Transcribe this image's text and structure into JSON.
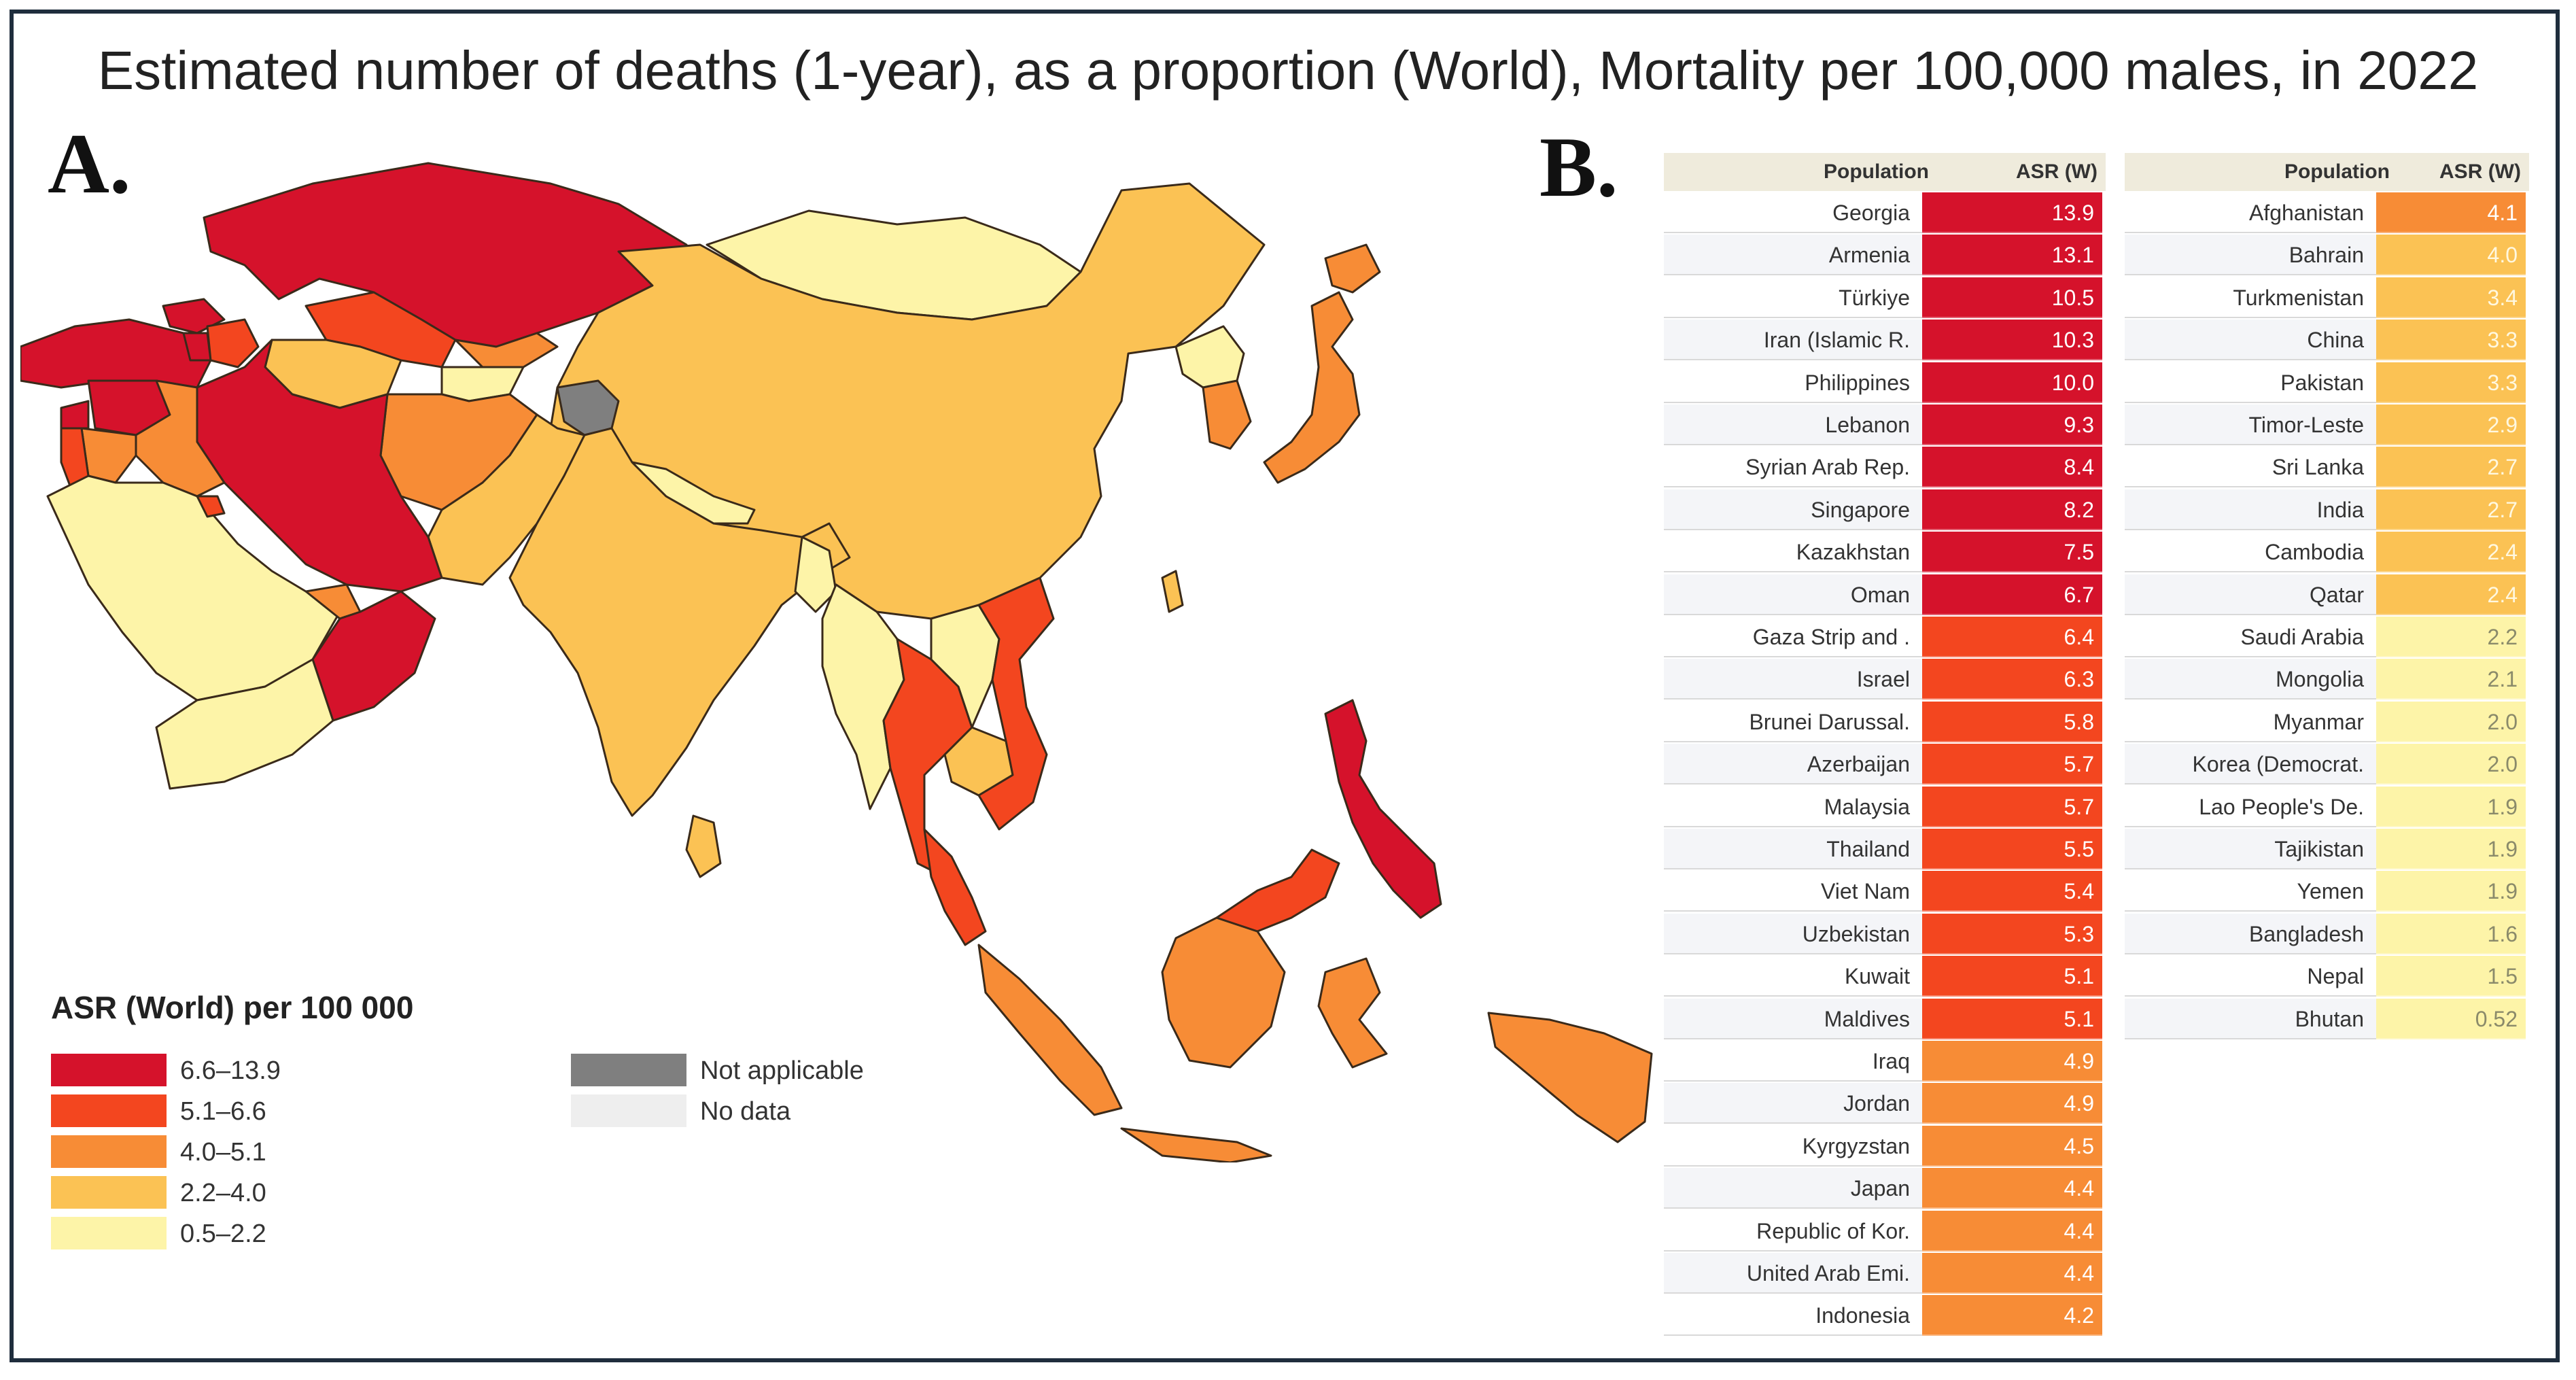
{
  "title": "Estimated number of deaths (1-year), as a proportion (World), Mortality per 100,000 males, in 2022",
  "panel_a": "A.",
  "panel_b": "B.",
  "legend": {
    "title": "ASR (World) per 100 000",
    "classes": [
      {
        "label": "6.6–13.9",
        "color": "#d5122b"
      },
      {
        "label": "5.1–6.6",
        "color": "#f3461f"
      },
      {
        "label": "4.0–5.1",
        "color": "#f78c36"
      },
      {
        "label": "2.2–4.0",
        "color": "#fbc254"
      },
      {
        "label": "0.5–2.2",
        "color": "#fdf4a8"
      }
    ],
    "extra": [
      {
        "label": "Not applicable",
        "color": "#7f7f7f"
      },
      {
        "label": "No data",
        "color": "#eeeeee"
      }
    ]
  },
  "map_colors": {
    "ocean": "#ffffff",
    "border": "#3a2a1a"
  },
  "table_left": {
    "header": {
      "population": "Population",
      "asr": "ASR (W)"
    },
    "rows": [
      {
        "name": "Georgia",
        "value": "13.9",
        "color": "#d5122b"
      },
      {
        "name": "Armenia",
        "value": "13.1",
        "color": "#d5122b"
      },
      {
        "name": "Türkiye",
        "value": "10.5",
        "color": "#d5122b"
      },
      {
        "name": "Iran (Islamic R.",
        "value": "10.3",
        "color": "#d5122b"
      },
      {
        "name": "Philippines",
        "value": "10.0",
        "color": "#d5122b"
      },
      {
        "name": "Lebanon",
        "value": "9.3",
        "color": "#d5122b"
      },
      {
        "name": "Syrian Arab Rep.",
        "value": "8.4",
        "color": "#d5122b"
      },
      {
        "name": "Singapore",
        "value": "8.2",
        "color": "#d5122b"
      },
      {
        "name": "Kazakhstan",
        "value": "7.5",
        "color": "#d5122b"
      },
      {
        "name": "Oman",
        "value": "6.7",
        "color": "#d5122b"
      },
      {
        "name": "Gaza Strip and .",
        "value": "6.4",
        "color": "#f3461f"
      },
      {
        "name": "Israel",
        "value": "6.3",
        "color": "#f3461f"
      },
      {
        "name": "Brunei Darussal.",
        "value": "5.8",
        "color": "#f3461f"
      },
      {
        "name": "Azerbaijan",
        "value": "5.7",
        "color": "#f3461f"
      },
      {
        "name": "Malaysia",
        "value": "5.7",
        "color": "#f3461f"
      },
      {
        "name": "Thailand",
        "value": "5.5",
        "color": "#f3461f"
      },
      {
        "name": "Viet Nam",
        "value": "5.4",
        "color": "#f3461f"
      },
      {
        "name": "Uzbekistan",
        "value": "5.3",
        "color": "#f3461f"
      },
      {
        "name": "Kuwait",
        "value": "5.1",
        "color": "#f3461f"
      },
      {
        "name": "Maldives",
        "value": "5.1",
        "color": "#f3461f"
      },
      {
        "name": "Iraq",
        "value": "4.9",
        "color": "#f78c36"
      },
      {
        "name": "Jordan",
        "value": "4.9",
        "color": "#f78c36"
      },
      {
        "name": "Kyrgyzstan",
        "value": "4.5",
        "color": "#f78c36"
      },
      {
        "name": "Japan",
        "value": "4.4",
        "color": "#f78c36"
      },
      {
        "name": "Republic of Kor.",
        "value": "4.4",
        "color": "#f78c36"
      },
      {
        "name": "United Arab Emi.",
        "value": "4.4",
        "color": "#f78c36"
      },
      {
        "name": "Indonesia",
        "value": "4.2",
        "color": "#f78c36"
      }
    ]
  },
  "table_right": {
    "header": {
      "population": "Population",
      "asr": "ASR (W)"
    },
    "rows": [
      {
        "name": "Afghanistan",
        "value": "4.1",
        "color": "#f78c36"
      },
      {
        "name": "Bahrain",
        "value": "4.0",
        "color": "#fbc254"
      },
      {
        "name": "Turkmenistan",
        "value": "3.4",
        "color": "#fbc254"
      },
      {
        "name": "China",
        "value": "3.3",
        "color": "#fbc254"
      },
      {
        "name": "Pakistan",
        "value": "3.3",
        "color": "#fbc254"
      },
      {
        "name": "Timor-Leste",
        "value": "2.9",
        "color": "#fbc254"
      },
      {
        "name": "Sri Lanka",
        "value": "2.7",
        "color": "#fbc254"
      },
      {
        "name": "India",
        "value": "2.7",
        "color": "#fbc254"
      },
      {
        "name": "Cambodia",
        "value": "2.4",
        "color": "#fbc254"
      },
      {
        "name": "Qatar",
        "value": "2.4",
        "color": "#fbc254"
      },
      {
        "name": "Saudi Arabia",
        "value": "2.2",
        "color": "#fdf4a8"
      },
      {
        "name": "Mongolia",
        "value": "2.1",
        "color": "#fdf4a8"
      },
      {
        "name": "Myanmar",
        "value": "2.0",
        "color": "#fdf4a8"
      },
      {
        "name": "Korea (Democrat.",
        "value": "2.0",
        "color": "#fdf4a8"
      },
      {
        "name": "Lao People's De.",
        "value": "1.9",
        "color": "#fdf4a8"
      },
      {
        "name": "Tajikistan",
        "value": "1.9",
        "color": "#fdf4a8"
      },
      {
        "name": "Yemen",
        "value": "1.9",
        "color": "#fdf4a8"
      },
      {
        "name": "Bangladesh",
        "value": "1.6",
        "color": "#fdf4a8"
      },
      {
        "name": "Nepal",
        "value": "1.5",
        "color": "#fdf4a8"
      },
      {
        "name": "Bhutan",
        "value": "0.52",
        "color": "#fdf4a8"
      }
    ]
  }
}
